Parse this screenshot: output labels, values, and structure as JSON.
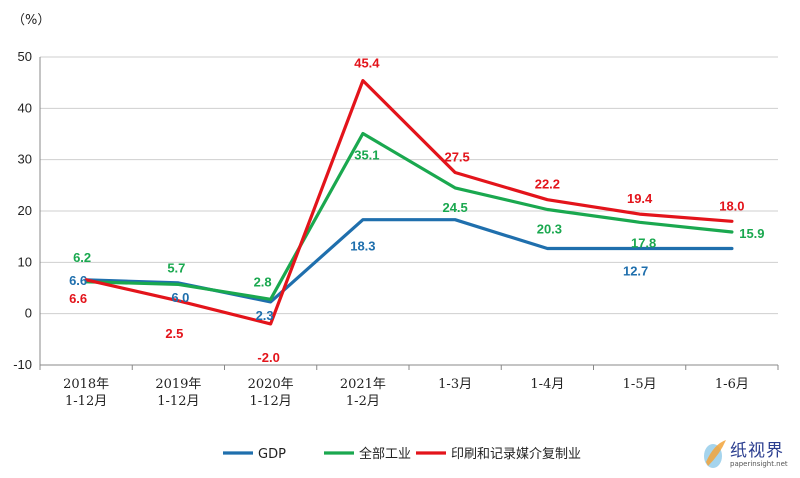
{
  "chart_data": {
    "type": "line",
    "unit_label": "（%）",
    "categories": [
      [
        "2018年",
        "1-12月"
      ],
      [
        "2019年",
        "1-12月"
      ],
      [
        "2020年",
        "1-12月"
      ],
      [
        "2021年",
        "1-2月"
      ],
      [
        "1-3月"
      ],
      [
        "1-4月"
      ],
      [
        "1-5月"
      ],
      [
        "1-6月"
      ]
    ],
    "ylim": [
      -10,
      50
    ],
    "yticks": [
      -10,
      0,
      10,
      20,
      30,
      40,
      50
    ],
    "grid": true,
    "legend_position": "bottom",
    "series": [
      {
        "name": "GDP",
        "color": "#1f6fad",
        "values": [
          6.6,
          6.0,
          2.3,
          18.3,
          18.3,
          12.7,
          12.7,
          12.7
        ],
        "labels": [
          "6.6",
          "6.0",
          "2.3",
          "18.3",
          null,
          null,
          "12.7",
          null
        ]
      },
      {
        "name": "全部工业",
        "color": "#1aa84f",
        "values": [
          6.2,
          5.7,
          2.8,
          35.1,
          24.5,
          20.3,
          17.8,
          15.9
        ],
        "labels": [
          "6.2",
          "5.7",
          "2.8",
          "35.1",
          "24.5",
          "20.3",
          "17.8",
          "15.9"
        ]
      },
      {
        "name": "印刷和记录媒介复制业",
        "color": "#e3141b",
        "values": [
          6.6,
          2.5,
          -2.0,
          45.4,
          27.5,
          22.2,
          19.4,
          18.0
        ],
        "labels": [
          "6.6",
          "2.5",
          "-2.0",
          "45.4",
          "27.5",
          "22.2",
          "19.4",
          "18.0"
        ]
      }
    ]
  },
  "watermark": {
    "text": "纸视界",
    "url": "paperinsight.net"
  }
}
